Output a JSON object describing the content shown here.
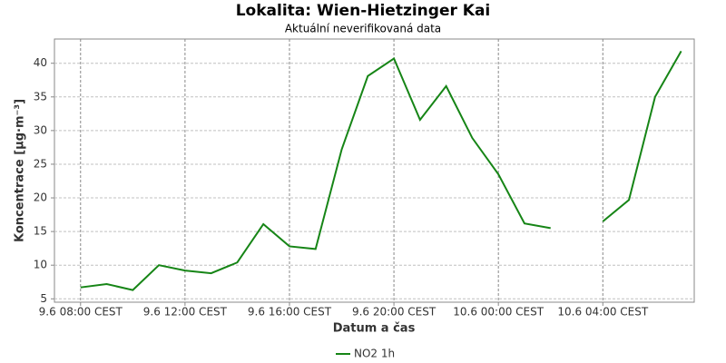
{
  "chart_data": {
    "type": "line",
    "title": "Lokalita: Wien-Hietzinger Kai",
    "subtitle": "Aktuální neverifikovaná data",
    "x_label": "Datum a čas",
    "y_label": "Koncentrace [µg·m⁻³]",
    "categories": [
      "9.6 08:00 CEST",
      null,
      null,
      null,
      "9.6 12:00 CEST",
      null,
      null,
      null,
      "9.6 16:00 CEST",
      null,
      null,
      null,
      "9.6 20:00 CEST",
      null,
      null,
      null,
      "10.6 00:00 CEST",
      null,
      null,
      null,
      "10.6 04:00 CEST",
      null,
      null,
      null
    ],
    "series": [
      {
        "name": "NO2 1h",
        "color": "#168516",
        "values": [
          6.7,
          7.2,
          6.3,
          10.0,
          9.2,
          8.8,
          10.4,
          16.1,
          12.8,
          12.4,
          27.2,
          38.1,
          40.7,
          31.6,
          36.6,
          28.9,
          23.5,
          16.2,
          15.5,
          null,
          16.5,
          19.7,
          35.0,
          41.8
        ]
      }
    ],
    "ylim": [
      4.5,
      43.6
    ],
    "yticks": [
      5,
      10,
      15,
      20,
      25,
      30,
      35,
      40
    ],
    "grid": true,
    "legend": "bottom"
  }
}
